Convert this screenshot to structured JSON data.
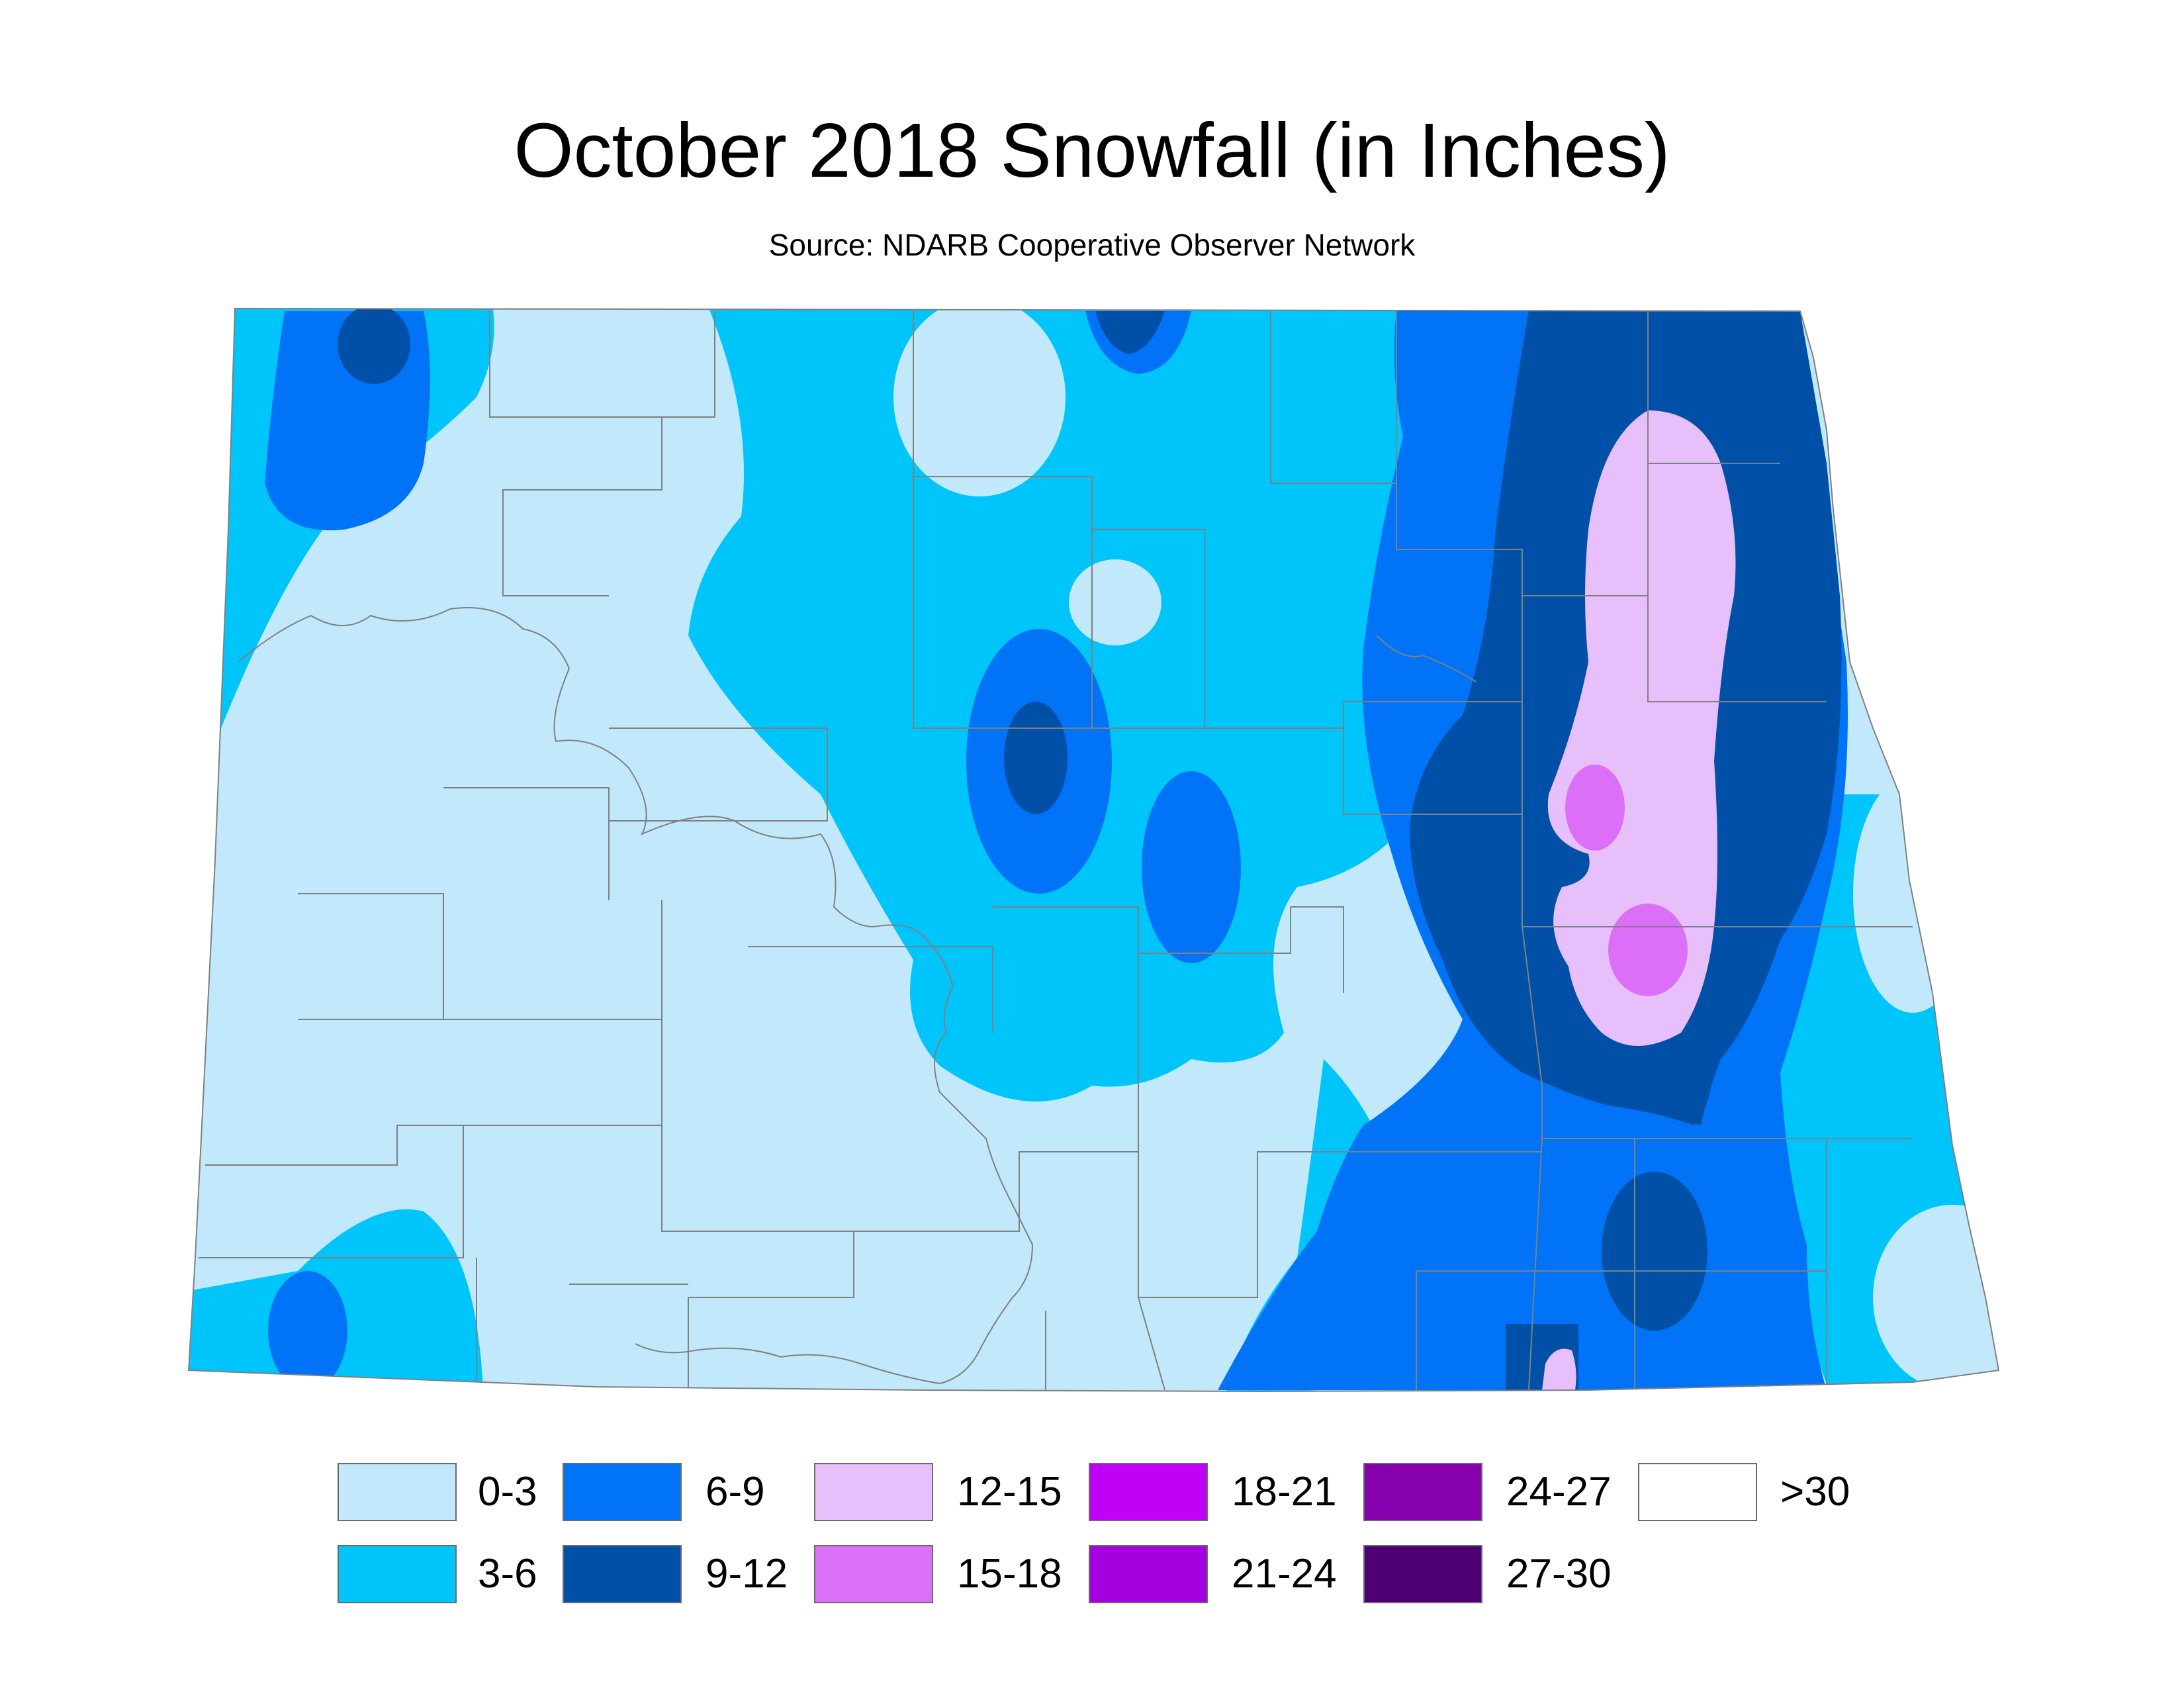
{
  "title": "October 2018 Snowfall (in Inches)",
  "subtitle": "Source: NDARB Cooperative Observer Network",
  "colors": {
    "c0_3": "#c1e8fb",
    "c3_6": "#00c5fb",
    "c6_9": "#0073f7",
    "c9_12": "#0050a8",
    "c12_15": "#e6bffb",
    "c15_18": "#dc6ff7",
    "border": "#808080"
  },
  "legend": [
    {
      "label": "0-3",
      "color": "#c1e8fb"
    },
    {
      "label": "3-6",
      "color": "#00c5fb"
    },
    {
      "label": "6-9",
      "color": "#0073f7"
    },
    {
      "label": "9-12",
      "color": "#0050a8"
    },
    {
      "label": "12-15",
      "color": "#e6bffb"
    },
    {
      "label": "15-18",
      "color": "#dc6ff7"
    },
    {
      "label": "18-21",
      "color": "#c000f7"
    },
    {
      "label": "21-24",
      "color": "#a500e0"
    },
    {
      "label": "24-27",
      "color": "#8600ad"
    },
    {
      "label": "27-30",
      "color": "#4d0073"
    },
    {
      "label": ">30",
      "color": "#ffffff"
    }
  ]
}
